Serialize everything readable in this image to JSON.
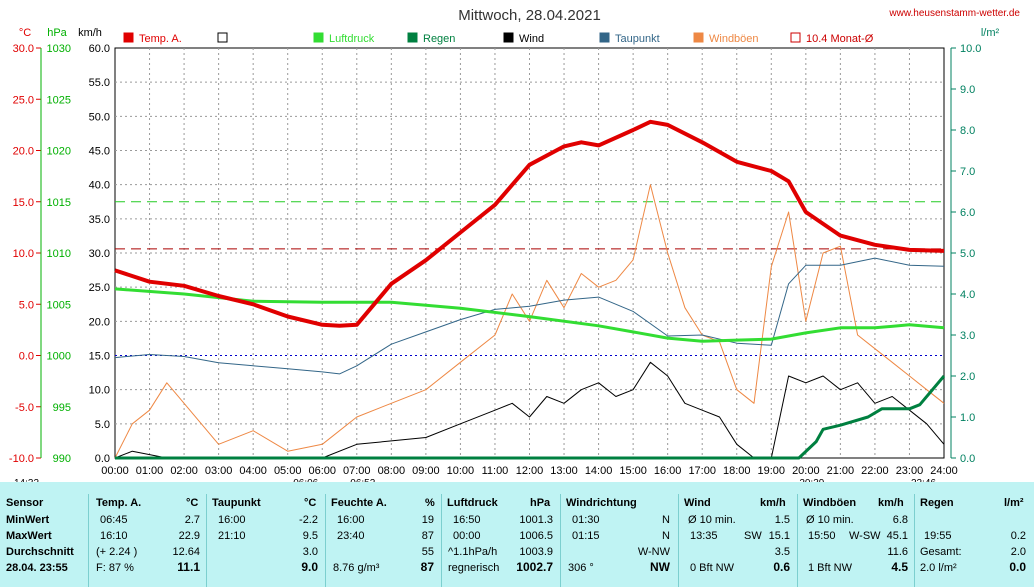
{
  "chart_data": {
    "type": "line",
    "title": "Mittwoch, 28.04.2021",
    "source": "www.heusenstamm-wetter.de",
    "axes": {
      "temp": {
        "label": "°C",
        "ticks": [
          "30.0",
          "25.0",
          "20.0",
          "15.0",
          "10.0",
          "5.0",
          "0.0",
          "-5.0",
          "-10.0"
        ],
        "range": [
          -10,
          30
        ],
        "color": "#e00000"
      },
      "pressure": {
        "label": "hPa",
        "ticks": [
          "1030",
          "1025",
          "1020",
          "1015",
          "1010",
          "1005",
          "1000",
          "995",
          "990"
        ],
        "range": [
          990,
          1030
        ],
        "color": "#00b000"
      },
      "wind": {
        "label": "km/h",
        "ticks": [
          "60.0",
          "55.0",
          "50.0",
          "45.0",
          "40.0",
          "35.0",
          "30.0",
          "25.0",
          "20.0",
          "15.0",
          "10.0",
          "5.0",
          "0.0"
        ],
        "range": [
          0,
          60
        ],
        "color": "#000000"
      },
      "rain": {
        "label": "l/m²",
        "ticks": [
          "10.0",
          "9.0",
          "8.0",
          "7.0",
          "6.0",
          "5.0",
          "4.0",
          "3.0",
          "2.0",
          "1.0",
          "0.0"
        ],
        "range": [
          0,
          10
        ],
        "color": "#008060"
      }
    },
    "x_ticks": [
      "00:00",
      "01:00",
      "02:00",
      "03:00",
      "04:00",
      "05:00",
      "06:00",
      "07:00",
      "08:00",
      "09:00",
      "10:00",
      "11:00",
      "12:00",
      "13:00",
      "14:00",
      "15:00",
      "16:00",
      "17:00",
      "18:00",
      "19:00",
      "20:00",
      "21:00",
      "22:00",
      "23:00",
      "24:00"
    ],
    "time_markers": [
      "14:32",
      "06:06",
      "06:52",
      "20:39",
      "22:46"
    ],
    "legend": [
      {
        "name": "Temp. A.",
        "color": "#e00000",
        "style": "filled"
      },
      {
        "name": "",
        "color": "#000000",
        "style": "open"
      },
      {
        "name": "Luftdruck",
        "color": "#33dd33",
        "style": "filled"
      },
      {
        "name": "Regen",
        "color": "#008040",
        "style": "filled"
      },
      {
        "name": "Wind",
        "color": "#000000",
        "style": "filled"
      },
      {
        "name": "Taupunkt",
        "color": "#336688",
        "style": "filled"
      },
      {
        "name": "Windböen",
        "color": "#ee8844",
        "style": "filled"
      },
      {
        "name": "10.4 Monat-Ø",
        "color": "#cc0000",
        "style": "open"
      }
    ],
    "reference_lines": {
      "temp_month_avg_c": 10.4,
      "pressure_hpa": 1015,
      "temp_zero_c": 0
    },
    "series": [
      {
        "name": "Temp. A.",
        "unit": "°C",
        "x": [
          0,
          1,
          2,
          3,
          4,
          5,
          6,
          6.5,
          7,
          7.5,
          8,
          9,
          10,
          11,
          12,
          13,
          13.5,
          14,
          15,
          15.5,
          16,
          17,
          18,
          19,
          19.5,
          20,
          21,
          22,
          23,
          24
        ],
        "values": [
          8.3,
          7.2,
          6.8,
          5.8,
          5.0,
          3.8,
          3.0,
          2.9,
          3.0,
          5.0,
          7.0,
          9.3,
          12.0,
          14.7,
          18.6,
          20.4,
          20.8,
          20.5,
          22.0,
          22.8,
          22.5,
          20.8,
          18.9,
          18.0,
          17.0,
          14.0,
          11.7,
          10.8,
          10.3,
          10.2
        ]
      },
      {
        "name": "Taupunkt",
        "unit": "°C",
        "x": [
          0,
          1,
          2,
          3,
          4,
          5,
          6,
          6.5,
          7,
          8,
          9,
          10,
          11,
          12,
          13,
          14,
          15,
          16,
          17,
          18,
          19,
          19.5,
          20,
          21,
          22,
          23,
          24
        ],
        "values": [
          -0.2,
          0.1,
          -0.1,
          -0.7,
          -1.0,
          -1.3,
          -1.6,
          -1.8,
          -1.0,
          1.1,
          2.3,
          3.5,
          4.5,
          4.8,
          5.4,
          5.7,
          4.3,
          1.9,
          2.0,
          1.2,
          1.0,
          7.0,
          8.8,
          8.8,
          9.5,
          8.8,
          8.7
        ]
      },
      {
        "name": "Luftdruck",
        "unit": "hPa",
        "x": [
          0,
          2,
          4,
          6,
          8,
          10,
          12,
          14,
          16,
          17,
          18,
          19,
          20,
          21,
          22,
          23,
          24
        ],
        "values": [
          1006.5,
          1006.0,
          1005.3,
          1005.2,
          1005.2,
          1004.6,
          1003.8,
          1002.9,
          1001.7,
          1001.4,
          1001.5,
          1001.6,
          1002.2,
          1002.7,
          1002.7,
          1003.0,
          1002.7
        ]
      },
      {
        "name": "Regen",
        "unit": "l/m²",
        "x": [
          0,
          19.8,
          20.3,
          20.5,
          21.0,
          21.8,
          22.2,
          23.0,
          23.3,
          23.6,
          24
        ],
        "values": [
          0,
          0,
          0.4,
          0.7,
          0.8,
          1.0,
          1.2,
          1.2,
          1.3,
          1.6,
          2.0
        ]
      },
      {
        "name": "Wind",
        "unit": "km/h",
        "x": [
          0,
          0.5,
          1.5,
          3,
          6,
          7,
          8,
          9,
          10,
          11,
          11.5,
          12,
          12.5,
          13,
          13.5,
          14,
          14.5,
          15,
          15.5,
          16,
          16.5,
          17,
          17.5,
          18,
          18.5,
          19,
          19.5,
          20,
          20.5,
          21,
          21.5,
          22,
          22.5,
          23,
          23.5,
          24
        ],
        "values": [
          0,
          1,
          0,
          0,
          0,
          2,
          2.5,
          3,
          5,
          7,
          8,
          6,
          9,
          8,
          10,
          11,
          9,
          10,
          14,
          12,
          8,
          7,
          6,
          2,
          0,
          0,
          12,
          11,
          12,
          10,
          11,
          8,
          9,
          7,
          5,
          2
        ]
      },
      {
        "name": "Windböen",
        "unit": "km/h",
        "x": [
          0,
          0.5,
          1,
          1.5,
          3,
          4,
          5,
          6,
          7,
          8,
          9,
          10,
          11,
          11.5,
          12,
          12.5,
          13,
          13.5,
          14,
          14.5,
          15,
          15.5,
          16,
          16.5,
          17,
          17.5,
          18,
          18.5,
          19,
          19.5,
          20,
          20.5,
          21,
          21.5,
          22,
          22.5,
          23,
          23.5,
          24
        ],
        "values": [
          0,
          5,
          7,
          11,
          2,
          4,
          1,
          2,
          6,
          8,
          10,
          14,
          18,
          24,
          20,
          26,
          22,
          27,
          25,
          26,
          29,
          40,
          30,
          22,
          18,
          17,
          10,
          8,
          28,
          36,
          20,
          30,
          31,
          18,
          16,
          14,
          12,
          10,
          8
        ]
      }
    ]
  },
  "footer": {
    "headers": {
      "sensor": "Sensor",
      "temp": "Temp. A.",
      "temp_unit": "°C",
      "taupunkt": "Taupunkt",
      "taupunkt_unit": "°C",
      "feuchte": "Feuchte A.",
      "feuchte_unit": "%",
      "luftdruck": "Luftdruck",
      "luftdruck_unit": "hPa",
      "windrichtung": "Windrichtung",
      "wind": "Wind",
      "wind_unit": "km/h",
      "windboeen": "Windböen",
      "windboeen_unit": "km/h",
      "regen": "Regen",
      "regen_unit": "l/m²"
    },
    "row_labels": [
      "MinWert",
      "MaxWert",
      "Durchschnitt",
      "28.04. 23:55"
    ],
    "temp": {
      "min_time": "06:45",
      "min": "2.7",
      "max_time": "16:10",
      "max": "22.9",
      "avg_note": "(+ 2.24 )",
      "avg": "12.64",
      "cur_note": "F: 87 %",
      "cur": "11.1"
    },
    "taupunkt": {
      "min_time": "16:00",
      "min": "-2.2",
      "max_time": "21:10",
      "max": "9.5",
      "avg": "3.0",
      "cur": "9.0"
    },
    "feuchte": {
      "min_time": "16:00",
      "min": "19",
      "max_time": "23:40",
      "max": "87",
      "avg": "55",
      "cur_note": "8.76 g/m³",
      "cur": "87"
    },
    "luftdruck": {
      "min_time": "16:50",
      "min": "1001.3",
      "max_time": "00:00",
      "max": "1006.5",
      "avg_note": "^1.1hPa/h",
      "avg": "1003.9",
      "cur_note": "regnerisch",
      "cur": "1002.7"
    },
    "windrichtung": {
      "min_time": "01:30",
      "min": "N",
      "max_time": "01:15",
      "max": "N",
      "avg": "W-NW",
      "cur_deg": "306 °",
      "cur": "NW"
    },
    "wind": {
      "min_note": "Ø 10 min.",
      "min": "1.5",
      "max_time": "13:35",
      "max_dir": "SW",
      "max": "15.1",
      "avg": "3.5",
      "cur_note": "0 Bft NW",
      "cur": "0.6"
    },
    "windboeen": {
      "min_note": "Ø 10 min.",
      "min": "6.8",
      "max_time": "15:50",
      "max_dir": "W-SW",
      "max": "45.1",
      "avg": "11.6",
      "cur_note": "1 Bft NW",
      "cur": "4.5"
    },
    "regen": {
      "max_time": "19:55",
      "max": "0.2",
      "avg_note": "Gesamt:",
      "avg": "2.0",
      "cur_note": "2.0 l/m²",
      "cur": "0.0"
    }
  }
}
